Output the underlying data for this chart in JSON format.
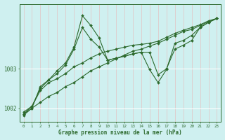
{
  "xlabel": "Graphe pression niveau de la mer (hPa)",
  "background_color": "#cff0f0",
  "grid_color_v": "#e8b8b8",
  "grid_color_h": "#ffffff",
  "line_color": "#2d6a2d",
  "marker": "D",
  "markersize": 2.0,
  "linewidth": 0.8,
  "ylim": [
    1001.65,
    1004.65
  ],
  "xlim": [
    -0.5,
    23.5
  ],
  "yticks": [
    1002,
    1003
  ],
  "xticks": [
    0,
    1,
    2,
    3,
    4,
    5,
    6,
    7,
    8,
    9,
    10,
    11,
    12,
    13,
    14,
    15,
    16,
    17,
    18,
    19,
    20,
    21,
    22,
    23
  ],
  "series": [
    [
      1001.85,
      1002.0,
      1002.15,
      1002.3,
      1002.4,
      1002.55,
      1002.65,
      1002.8,
      1002.95,
      1003.05,
      1003.15,
      1003.25,
      1003.35,
      1003.45,
      1003.5,
      1003.58,
      1003.65,
      1003.75,
      1003.85,
      1003.95,
      1004.0,
      1004.1,
      1004.2,
      1004.28
    ],
    [
      1001.9,
      1002.05,
      1002.45,
      1002.65,
      1002.75,
      1002.88,
      1003.05,
      1003.15,
      1003.28,
      1003.38,
      1003.45,
      1003.5,
      1003.55,
      1003.6,
      1003.62,
      1003.65,
      1003.7,
      1003.8,
      1003.9,
      1003.98,
      1004.05,
      1004.12,
      1004.22,
      1004.28
    ],
    [
      1001.85,
      1002.05,
      1002.5,
      1002.72,
      1002.88,
      1003.1,
      1003.5,
      1004.05,
      1003.75,
      1003.55,
      1003.22,
      1003.27,
      1003.32,
      1003.38,
      1003.42,
      1003.42,
      1002.85,
      1003.0,
      1003.5,
      1003.6,
      1003.72,
      1004.05,
      1004.18,
      1004.28
    ],
    [
      1001.82,
      1002.0,
      1002.55,
      1002.72,
      1002.95,
      1003.15,
      1003.55,
      1004.35,
      1004.1,
      1003.78,
      1003.22,
      1003.27,
      1003.32,
      1003.38,
      1003.42,
      1002.98,
      1002.65,
      1002.98,
      1003.65,
      1003.72,
      1003.85,
      1004.05,
      1004.18,
      1004.28
    ]
  ]
}
